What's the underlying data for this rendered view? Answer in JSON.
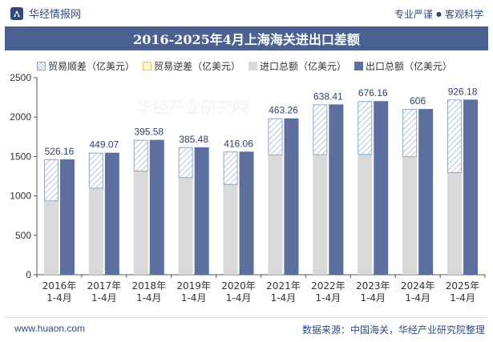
{
  "header": {
    "brand": "华经情报网",
    "tagline_left": "专业严谨",
    "tagline_right": "客观科学"
  },
  "title": "2016-2025年4月上海海关进出口差额",
  "legend": [
    {
      "key": "surplus",
      "label": "贸易顺差（亿美元）"
    },
    {
      "key": "deficit",
      "label": "贸易逆差（亿美元）"
    },
    {
      "key": "imp",
      "label": "进口总额（亿美元）"
    },
    {
      "key": "exp",
      "label": "出口总额（亿美元）"
    }
  ],
  "colors": {
    "export": "#5c6f9e",
    "import": "#d9d9d9",
    "surplus_hatch": "#9fb6d4",
    "surplus_border": "#8fa7c8",
    "deficit": "#e6c84a",
    "title_band": "#4a6191",
    "brand_text": "#2d4d80"
  },
  "chart_data": {
    "type": "bar",
    "categories": [
      "2016年\n1-4月",
      "2017年\n1-4月",
      "2018年\n1-4月",
      "2019年\n1-4月",
      "2020年\n1-4月",
      "2021年\n1-4月",
      "2022年\n1-4月",
      "2023年\n1-4月",
      "2024年\n1-4月",
      "2025年\n1-4月"
    ],
    "series": [
      {
        "name": "进口总额（亿美元）",
        "values": [
          938,
          1099,
          1316,
          1232,
          1146,
          1521,
          1523,
          1527,
          1497,
          1296
        ]
      },
      {
        "name": "出口总额（亿美元）",
        "values": [
          1464,
          1548,
          1711,
          1617,
          1562,
          1984,
          2161,
          2203,
          2103,
          2222
        ]
      },
      {
        "name": "贸易顺差（亿美元）",
        "values": [
          526.16,
          449.07,
          395.58,
          385.48,
          416.06,
          463.26,
          638.41,
          676.16,
          606,
          926.18
        ]
      },
      {
        "name": "贸易逆差（亿美元）",
        "values": [
          0,
          0,
          0,
          0,
          0,
          0,
          0,
          0,
          0,
          0
        ]
      }
    ],
    "data_labels": [
      "526.16",
      "449.07",
      "395.58",
      "385.48",
      "416.06",
      "463.26",
      "638.41",
      "676.16",
      "606",
      "926.18"
    ],
    "ylim": [
      0,
      2500
    ],
    "yticks": [
      0,
      500,
      1000,
      1500,
      2000,
      2500
    ],
    "grid": false,
    "legend_position": "top-left"
  },
  "footer": {
    "url": "www.huaon.com",
    "source": "数据来源：中国海关，华经产业研究院整理"
  },
  "watermark": {
    "text": "华经产业研究院",
    "url_text": "www.huaon.com"
  }
}
